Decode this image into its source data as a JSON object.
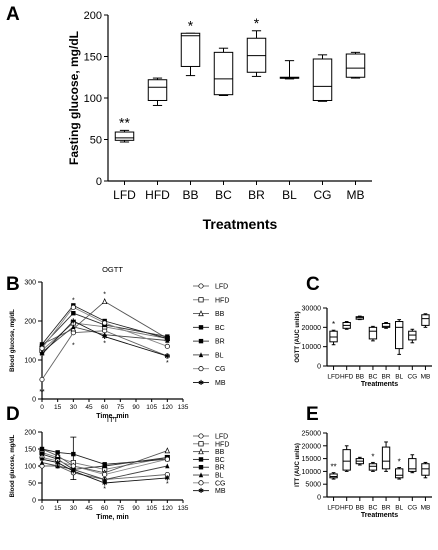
{
  "chart_data": [
    {
      "panel": "A",
      "type": "box",
      "xlabel": "Treatments",
      "ylabel": "Fasting glucose, mg/dL",
      "ylim": [
        0,
        200
      ],
      "yticks": [
        0,
        50,
        100,
        150,
        200
      ],
      "categories": [
        "LFD",
        "HFD",
        "BB",
        "BC",
        "BR",
        "BL",
        "CG",
        "MB"
      ],
      "boxes": [
        {
          "min": 47,
          "q1": 49,
          "median": 52,
          "q3": 59,
          "max": 61,
          "mark": "**"
        },
        {
          "min": 91,
          "q1": 97,
          "median": 113,
          "q3": 122,
          "max": 124,
          "mark": ""
        },
        {
          "min": 127,
          "q1": 138,
          "median": 175,
          "q3": 178,
          "max": 178,
          "mark": "*"
        },
        {
          "min": 103,
          "q1": 104,
          "median": 123,
          "q3": 155,
          "max": 160,
          "mark": ""
        },
        {
          "min": 126,
          "q1": 131,
          "median": 151,
          "q3": 172,
          "max": 181,
          "mark": "*"
        },
        {
          "min": 123,
          "q1": 124,
          "median": 124,
          "q3": 125,
          "max": 145,
          "mark": ""
        },
        {
          "min": 96,
          "q1": 97,
          "median": 114,
          "q3": 147,
          "max": 152,
          "mark": ""
        },
        {
          "min": 124,
          "q1": 125,
          "median": 136,
          "q3": 153,
          "max": 155,
          "mark": ""
        }
      ]
    },
    {
      "panel": "B",
      "type": "line",
      "title": "OGTT",
      "xlabel": "Time, min",
      "ylabel": "Blood glucose, mg/dL",
      "xlim": [
        0,
        135
      ],
      "xticks": [
        0,
        15,
        30,
        45,
        60,
        75,
        90,
        105,
        120,
        135
      ],
      "ylim": [
        0,
        300
      ],
      "yticks": [
        0,
        100,
        200,
        300
      ],
      "x": [
        0,
        30,
        60,
        120
      ],
      "series": [
        {
          "name": "LFD",
          "marker": "circle-open",
          "values": [
            50,
            170,
            175,
            110
          ]
        },
        {
          "name": "HFD",
          "marker": "square-open",
          "values": [
            125,
            195,
            185,
            155
          ]
        },
        {
          "name": "BB",
          "marker": "triangle-open",
          "values": [
            140,
            180,
            250,
            155
          ]
        },
        {
          "name": "BC",
          "marker": "square",
          "values": [
            140,
            240,
            200,
            155
          ]
        },
        {
          "name": "BR",
          "marker": "square",
          "values": [
            135,
            220,
            190,
            160
          ]
        },
        {
          "name": "BL",
          "marker": "triangle",
          "values": [
            120,
            185,
            165,
            150
          ]
        },
        {
          "name": "CG",
          "marker": "circle-open",
          "values": [
            130,
            235,
            195,
            135
          ]
        },
        {
          "name": "MB",
          "marker": "star",
          "values": [
            115,
            200,
            160,
            110
          ]
        }
      ],
      "annotations": [
        {
          "x": 0,
          "y": 20,
          "text": "**"
        },
        {
          "x": 30,
          "y": 255,
          "text": "*"
        },
        {
          "x": 60,
          "y": 270,
          "text": "*"
        },
        {
          "x": 120,
          "y": 95,
          "text": "*"
        },
        {
          "x": 30,
          "y": 140,
          "text": "*"
        },
        {
          "x": 60,
          "y": 145,
          "text": "*"
        }
      ]
    },
    {
      "panel": "C",
      "type": "box",
      "xlabel": "Treatments",
      "ylabel": "OGTT (AUC units)",
      "ylim": [
        0,
        30000
      ],
      "yticks": [
        0,
        10000,
        20000,
        30000
      ],
      "categories": [
        "LFD",
        "HFD",
        "BB",
        "BC",
        "BR",
        "BL",
        "CG",
        "MB"
      ],
      "boxes": [
        {
          "min": 11000,
          "q1": 12500,
          "median": 15000,
          "q3": 18000,
          "max": 18500,
          "mark": "*"
        },
        {
          "min": 19000,
          "q1": 19500,
          "median": 21000,
          "q3": 22500,
          "max": 23000,
          "mark": ""
        },
        {
          "min": 24000,
          "q1": 24200,
          "median": 25000,
          "q3": 25500,
          "max": 25800,
          "mark": ""
        },
        {
          "min": 13000,
          "q1": 14000,
          "median": 18000,
          "q3": 20000,
          "max": 20500,
          "mark": ""
        },
        {
          "min": 19500,
          "q1": 20000,
          "median": 20500,
          "q3": 22000,
          "max": 22500,
          "mark": ""
        },
        {
          "min": 6000,
          "q1": 9000,
          "median": 20000,
          "q3": 23000,
          "max": 24000,
          "mark": ""
        },
        {
          "min": 12000,
          "q1": 13500,
          "median": 16000,
          "q3": 18000,
          "max": 19000,
          "mark": ""
        },
        {
          "min": 20000,
          "q1": 21000,
          "median": 24500,
          "q3": 26500,
          "max": 27000,
          "mark": ""
        }
      ]
    },
    {
      "panel": "D",
      "type": "line",
      "title": "ITT",
      "xlabel": "Time, min",
      "ylabel": "Blood glucose, mg/dL",
      "xlim": [
        0,
        135
      ],
      "xticks": [
        0,
        15,
        30,
        45,
        60,
        75,
        90,
        105,
        120,
        135
      ],
      "ylim": [
        0,
        200
      ],
      "yticks": [
        0,
        50,
        100,
        150,
        200
      ],
      "x": [
        0,
        15,
        30,
        60,
        120
      ],
      "series": [
        {
          "name": "LFD",
          "marker": "circle-open",
          "values": [
            100,
            100,
            80,
            60,
            75
          ]
        },
        {
          "name": "HFD",
          "marker": "square-open",
          "values": [
            140,
            125,
            110,
            90,
            125
          ]
        },
        {
          "name": "BB",
          "marker": "triangle-open",
          "values": [
            150,
            130,
            100,
            80,
            145
          ]
        },
        {
          "name": "BC",
          "marker": "square",
          "values": [
            150,
            140,
            135,
            105,
            120
          ]
        },
        {
          "name": "BR",
          "marker": "square",
          "values": [
            135,
            120,
            90,
            100,
            125
          ]
        },
        {
          "name": "BL",
          "marker": "triangle",
          "values": [
            110,
            100,
            90,
            60,
            100
          ]
        },
        {
          "name": "CG",
          "marker": "circle-open",
          "values": [
            125,
            115,
            100,
            75,
            120
          ]
        },
        {
          "name": "MB",
          "marker": "star",
          "values": [
            120,
            110,
            85,
            50,
            65
          ]
        }
      ],
      "errorbars": [
        {
          "x": 30,
          "low": 60,
          "high": 185
        }
      ],
      "annotations": [
        {
          "x": 60,
          "y": 35,
          "text": "*"
        },
        {
          "x": 120,
          "y": 50,
          "text": "*"
        }
      ]
    },
    {
      "panel": "E",
      "type": "box",
      "xlabel": "Treatments",
      "ylabel": "ITT (AUC units)",
      "ylim": [
        0,
        25000
      ],
      "yticks": [
        0,
        5000,
        10000,
        15000,
        20000,
        25000
      ],
      "categories": [
        "LFD",
        "HFD",
        "BB",
        "BC",
        "BR",
        "BL",
        "CG",
        "MB"
      ],
      "boxes": [
        {
          "min": 7000,
          "q1": 7500,
          "median": 8000,
          "q3": 9000,
          "max": 9500,
          "mark": "**"
        },
        {
          "min": 10000,
          "q1": 10500,
          "median": 14000,
          "q3": 18500,
          "max": 20000,
          "mark": ""
        },
        {
          "min": 12500,
          "q1": 13000,
          "median": 14000,
          "q3": 15000,
          "max": 15500,
          "mark": ""
        },
        {
          "min": 10000,
          "q1": 10500,
          "median": 12000,
          "q3": 13000,
          "max": 13500,
          "mark": "*"
        },
        {
          "min": 10000,
          "q1": 11000,
          "median": 14000,
          "q3": 19500,
          "max": 21500,
          "mark": ""
        },
        {
          "min": 7000,
          "q1": 7500,
          "median": 8500,
          "q3": 11000,
          "max": 11500,
          "mark": "*"
        },
        {
          "min": 9500,
          "q1": 10000,
          "median": 11000,
          "q3": 15000,
          "max": 16500,
          "mark": ""
        },
        {
          "min": 7500,
          "q1": 8500,
          "median": 11000,
          "q3": 13000,
          "max": 13500,
          "mark": ""
        }
      ]
    }
  ]
}
